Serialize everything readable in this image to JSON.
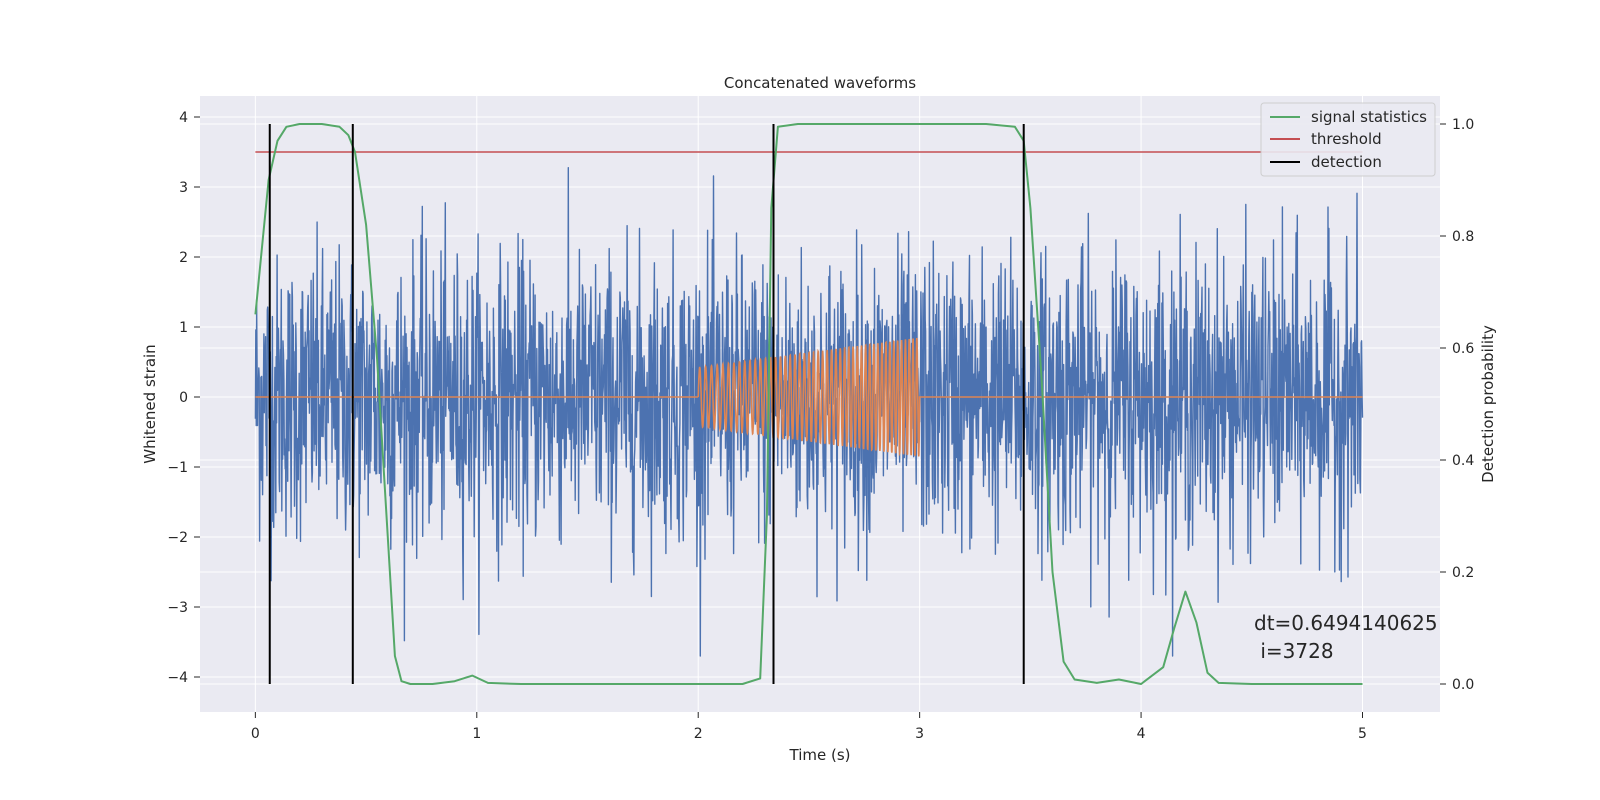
{
  "chart_data": {
    "type": "line",
    "title": "Concatenated waveforms",
    "xlabel": "Time (s)",
    "ylabel": "Whitened strain",
    "y2label": "Detection probability",
    "xlim": [
      -0.25,
      5.35
    ],
    "ylim": [
      -4.5,
      4.3
    ],
    "y2lim": [
      -0.05,
      1.05
    ],
    "x_ticks": [
      0,
      1,
      2,
      3,
      4,
      5
    ],
    "y_ticks": [
      4,
      3,
      2,
      1,
      0,
      -1,
      -2,
      -3,
      -4
    ],
    "y2_ticks": [
      1.0,
      0.8,
      0.6,
      0.4,
      0.2,
      0.0
    ],
    "y_tick_labels": [
      "4",
      "3",
      "2",
      "1",
      "0",
      "−1",
      "−2",
      "−3",
      "−4"
    ],
    "y2_tick_labels": [
      "1.0",
      "0.8",
      "0.6",
      "0.4",
      "0.2",
      "0.0"
    ],
    "grid": true,
    "legend_position": "top-right",
    "legend": [
      "signal statistics",
      "threshold",
      "detection"
    ],
    "colors": {
      "strain": "#4c72b0",
      "template": "#dd8452",
      "signal_statistics": "#55a868",
      "threshold": "#c44e52",
      "detection": "#000000",
      "background": "#eaeaf2",
      "grid": "#ffffff"
    },
    "strain": {
      "x_range": [
        0,
        5
      ],
      "typical_amplitude": 1.0,
      "peak_amplitude": 3.7,
      "description_level": "noise"
    },
    "template_chirp": {
      "x_start": 2.0,
      "x_end": 3.0,
      "amplitude_start": 0.42,
      "amplitude_end": 0.85,
      "cycles": 48
    },
    "threshold": {
      "x_range": [
        0,
        5
      ],
      "value": 0.95,
      "axis": "right"
    },
    "detections": [
      0.065,
      0.44,
      2.34,
      3.47
    ],
    "detection_y2_range": [
      0.0,
      1.0
    ],
    "signal_statistics": {
      "axis": "right",
      "x": [
        0.0,
        0.03,
        0.06,
        0.1,
        0.14,
        0.2,
        0.3,
        0.38,
        0.42,
        0.45,
        0.5,
        0.55,
        0.6,
        0.63,
        0.66,
        0.7,
        0.8,
        0.9,
        0.98,
        1.05,
        1.2,
        1.6,
        2.0,
        2.2,
        2.28,
        2.31,
        2.33,
        2.36,
        2.45,
        2.8,
        3.3,
        3.43,
        3.47,
        3.5,
        3.55,
        3.6,
        3.65,
        3.7,
        3.8,
        3.9,
        4.0,
        4.1,
        4.15,
        4.2,
        4.25,
        4.3,
        4.35,
        4.5,
        5.0
      ],
      "y": [
        0.66,
        0.78,
        0.9,
        0.97,
        0.995,
        1.0,
        1.0,
        0.995,
        0.98,
        0.95,
        0.82,
        0.58,
        0.25,
        0.05,
        0.005,
        0.0,
        0.0,
        0.005,
        0.015,
        0.002,
        0.0,
        0.0,
        0.0,
        0.0,
        0.01,
        0.3,
        0.85,
        0.995,
        1.0,
        1.0,
        1.0,
        0.995,
        0.97,
        0.85,
        0.55,
        0.2,
        0.04,
        0.008,
        0.002,
        0.008,
        0.0,
        0.03,
        0.1,
        0.165,
        0.11,
        0.02,
        0.002,
        0.0,
        0.0
      ]
    },
    "annotation": [
      "dt=0.6494140625",
      " i=3728"
    ]
  }
}
